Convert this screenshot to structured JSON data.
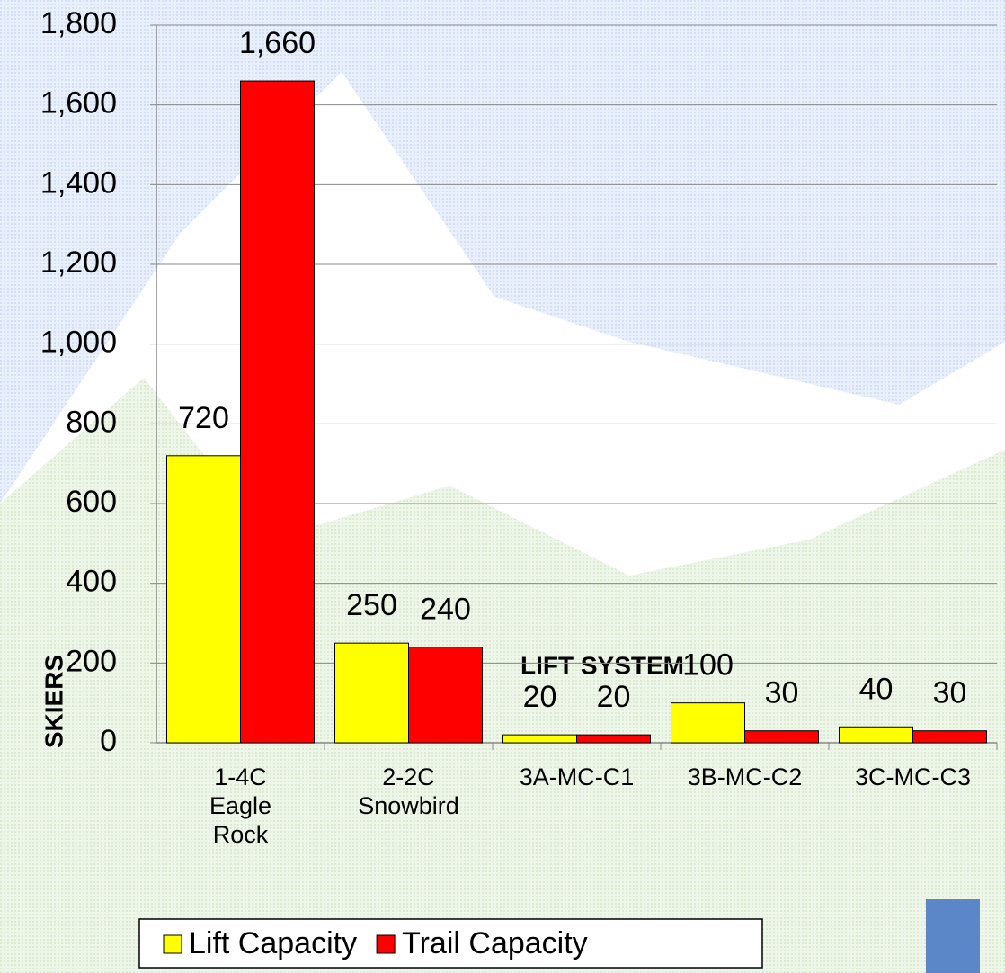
{
  "chart_data": {
    "type": "bar",
    "categories": [
      "1-4C\nEagle\nRock",
      "2-2C\nSnowbird",
      "3A-MC-C1",
      "3B-MC-C2",
      "3C-MC-C3"
    ],
    "series": [
      {
        "name": "Lift Capacity",
        "color": "#ffff00",
        "values": [
          720,
          250,
          20,
          100,
          40
        ]
      },
      {
        "name": "Trail Capacity",
        "color": "#ff0000",
        "values": [
          1660,
          240,
          20,
          30,
          30
        ],
        "value_labels": [
          "1,660",
          "240",
          "20",
          "30",
          "30"
        ]
      }
    ],
    "x_label": "LIFT SYSTEM",
    "y_label": "SKIERS",
    "ylim": [
      0,
      1800
    ],
    "yticks": [
      0,
      200,
      400,
      600,
      800,
      {
        "value": 1000,
        "label": "1,000"
      },
      {
        "value": 1200,
        "label": "1,200"
      },
      {
        "value": 1400,
        "label": "1,400"
      },
      {
        "value": 1600,
        "label": "1,600"
      },
      {
        "value": 1800,
        "label": "1,800"
      }
    ],
    "grid": true,
    "legend": "bottom"
  }
}
